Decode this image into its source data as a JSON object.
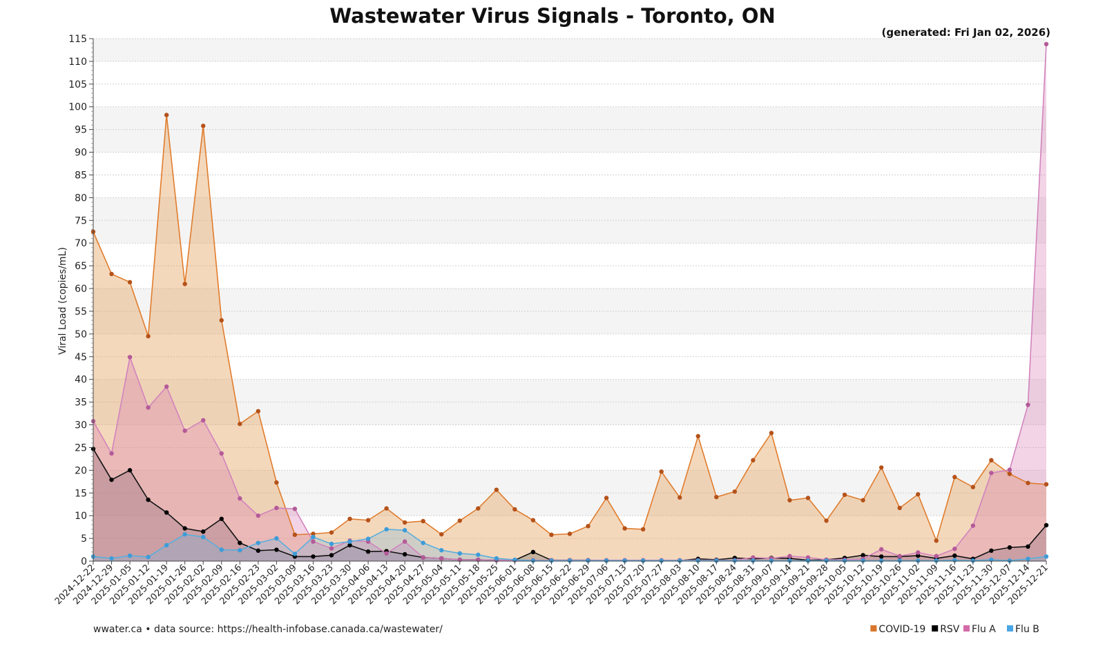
{
  "footer": {
    "source": "wwater.ca • data source: https://health-infobase.canada.ca/wastewater/"
  },
  "chart_data": {
    "type": "area",
    "title": "Wastewater Virus Signals - Toronto, ON",
    "subtitle": "(generated: Fri Jan 02, 2026)",
    "ylabel": "Viral Load (copies/mL)",
    "xlabel": "",
    "ylim": [
      0,
      115
    ],
    "ytick_step": 5,
    "grid": true,
    "legend_position": "bottom-right",
    "x": [
      "2024-12-22",
      "2024-12-29",
      "2025-01-05",
      "2025-01-12",
      "2025-01-19",
      "2025-01-26",
      "2025-02-02",
      "2025-02-09",
      "2025-02-16",
      "2025-02-23",
      "2025-03-02",
      "2025-03-09",
      "2025-03-16",
      "2025-03-23",
      "2025-03-30",
      "2025-04-06",
      "2025-04-13",
      "2025-04-20",
      "2025-04-27",
      "2025-05-04",
      "2025-05-11",
      "2025-05-18",
      "2025-05-25",
      "2025-06-01",
      "2025-06-08",
      "2025-06-15",
      "2025-06-22",
      "2025-06-29",
      "2025-07-06",
      "2025-07-13",
      "2025-07-20",
      "2025-07-27",
      "2025-08-03",
      "2025-08-10",
      "2025-08-17",
      "2025-08-24",
      "2025-08-31",
      "2025-09-07",
      "2025-09-14",
      "2025-09-21",
      "2025-09-28",
      "2025-10-05",
      "2025-10-12",
      "2025-10-19",
      "2025-10-26",
      "2025-11-02",
      "2025-11-09",
      "2025-11-16",
      "2025-11-23",
      "2025-11-30",
      "2025-12-07",
      "2025-12-14",
      "2025-12-21"
    ],
    "series": [
      {
        "name": "COVID-19",
        "color": "#d9762b",
        "stroke": "#e07c2c",
        "dot": "#b5521a",
        "fill": "rgba(229,161,96,0.42)",
        "values": [
          72.5,
          63.2,
          61.4,
          49.5,
          98.2,
          61.0,
          95.8,
          53.0,
          30.2,
          33.0,
          17.3,
          5.8,
          6.0,
          6.3,
          9.3,
          9.0,
          11.6,
          8.5,
          8.8,
          5.9,
          8.9,
          11.6,
          15.7,
          11.4,
          9.0,
          5.8,
          6.0,
          7.7,
          13.9,
          7.2,
          7.0,
          19.7,
          14.0,
          27.5,
          14.1,
          15.3,
          22.2,
          28.2,
          13.4,
          13.9,
          8.9,
          14.6,
          13.4,
          20.6,
          11.7,
          14.7,
          4.5,
          18.5,
          16.3,
          22.2,
          19.2,
          17.2,
          16.9
        ]
      },
      {
        "name": "RSV",
        "color": "#000000",
        "stroke": "#111111",
        "dot": "#000000",
        "fill": "rgba(80,80,80,0.28)",
        "values": [
          24.7,
          17.9,
          20.0,
          13.5,
          10.7,
          7.2,
          6.5,
          9.3,
          4.0,
          2.3,
          2.5,
          1.0,
          1.0,
          1.3,
          3.5,
          2.1,
          2.2,
          1.5,
          0.8,
          0.6,
          0.3,
          0.3,
          0.2,
          0.2,
          2.0,
          0.2,
          0.2,
          0.2,
          0.1,
          0.1,
          0.1,
          0.1,
          0.1,
          0.5,
          0.3,
          0.7,
          0.5,
          0.7,
          0.6,
          0.2,
          0.3,
          0.7,
          1.3,
          1.0,
          1.0,
          1.2,
          0.6,
          1.2,
          0.5,
          2.3,
          3.0,
          3.2,
          7.9
        ]
      },
      {
        "name": "Flu A",
        "color": "#d46aa8",
        "stroke": "#d283bd",
        "dot": "#b45a98",
        "fill": "rgba(214,120,178,0.32)",
        "values": [
          30.8,
          23.7,
          44.9,
          33.8,
          38.4,
          28.7,
          31.0,
          23.7,
          13.8,
          10.0,
          11.7,
          11.5,
          4.3,
          2.8,
          4.5,
          4.3,
          1.7,
          4.3,
          0.8,
          0.6,
          0.3,
          0.3,
          0.2,
          0.2,
          0.2,
          0.2,
          0.2,
          0.2,
          0.2,
          0.2,
          0.2,
          0.2,
          0.2,
          0.2,
          0.2,
          0.2,
          0.8,
          0.6,
          1.1,
          0.8,
          0.3,
          0.3,
          0.5,
          2.6,
          1.1,
          1.9,
          1.1,
          2.7,
          7.8,
          19.4,
          20.1,
          34.4,
          113.8
        ]
      },
      {
        "name": "Flu B",
        "color": "#4aa6e6",
        "stroke": "#5aaedd",
        "dot": "#3d9cd8",
        "fill": "rgba(110,180,225,0.28)",
        "values": [
          1.0,
          0.6,
          1.2,
          0.9,
          3.5,
          5.9,
          5.3,
          2.5,
          2.4,
          4.0,
          5.0,
          1.6,
          5.3,
          3.8,
          4.3,
          4.9,
          7.0,
          6.8,
          4.0,
          2.4,
          1.7,
          1.4,
          0.6,
          0.3,
          0.1,
          0.1,
          0.1,
          0.1,
          0.1,
          0.1,
          0.1,
          0.1,
          0.1,
          0.1,
          0.1,
          0.1,
          0.1,
          0.1,
          0.1,
          0.1,
          0.1,
          0.1,
          0.1,
          0.1,
          0.1,
          0.1,
          0.1,
          0.2,
          0.1,
          0.3,
          0.1,
          0.5,
          1.0
        ]
      }
    ]
  }
}
